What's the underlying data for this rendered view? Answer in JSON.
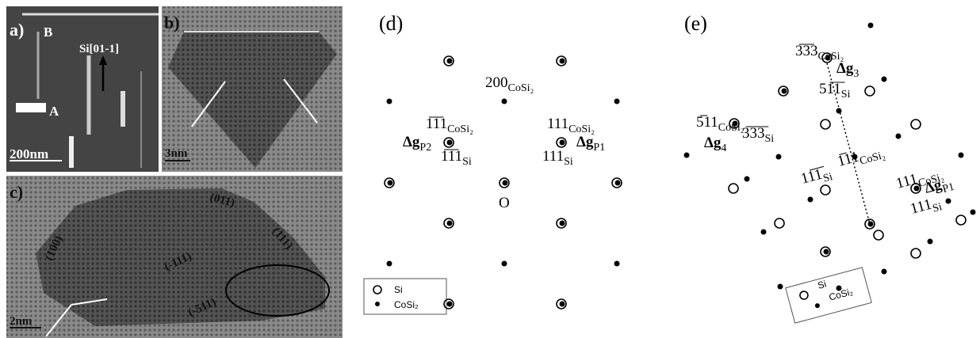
{
  "panels": {
    "a": {
      "label": "a)",
      "marker_b": "B",
      "marker_a": "A",
      "direction": "Si[01-1]",
      "scale_bar": "200nm"
    },
    "b": {
      "label": "b)",
      "scale_bar": "3nm"
    },
    "c": {
      "label": "c)",
      "scale_bar": "2nm",
      "planes": [
        "(011)",
        "(100)",
        "(111)",
        "(-111)",
        "(-511)"
      ]
    },
    "d": {
      "label": "(d)",
      "spots": [
        {
          "main": "200",
          "sub": "CoSi₂"
        },
        {
          "main": "1̅1̅1",
          "sub": "CoSi₂"
        },
        {
          "main": "Δg",
          "sub": "P2"
        },
        {
          "main": "1̅1̅1",
          "sub": "Si"
        },
        {
          "main": "111",
          "sub": "CoSi₂"
        },
        {
          "main": "Δg",
          "sub": "P1"
        },
        {
          "main": "111",
          "sub": "Si"
        }
      ],
      "origin": "O",
      "legend": [
        "Si",
        "CoSi₂"
      ]
    },
    "e": {
      "label": "(e)",
      "spots": [
        {
          "main": "3̅3̅3",
          "sub": "CoSi₂"
        },
        {
          "main": "Δg",
          "sub": "3"
        },
        {
          "main": "51̅1̅",
          "sub": "Si"
        },
        {
          "main": "5̅11",
          "sub": "CoSi₂"
        },
        {
          "main": "Δg",
          "sub": "4"
        },
        {
          "main": "3̅3̅3̅",
          "sub": "Si"
        },
        {
          "main": "11̅1̅",
          "sub": "Si"
        },
        {
          "main": "1̅11",
          "sub": "CoSi₂"
        },
        {
          "main": "111",
          "sub": "CoSi₂"
        },
        {
          "main": "Δg",
          "sub": "P1"
        },
        {
          "main": "111",
          "sub": "Si"
        }
      ],
      "legend": [
        "Si",
        "CoSi₂"
      ]
    }
  }
}
